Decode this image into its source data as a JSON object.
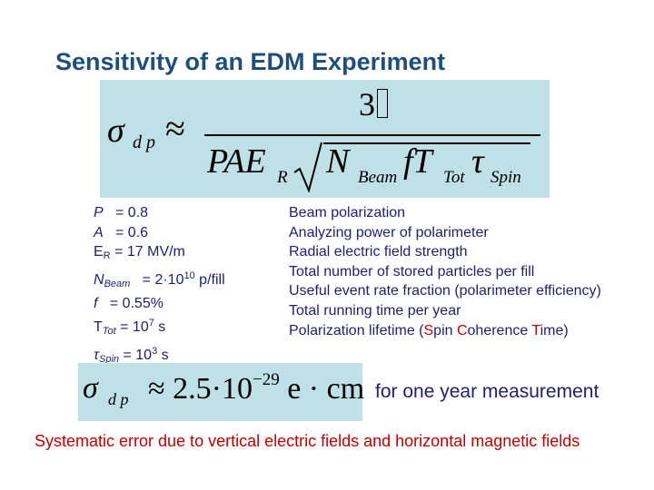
{
  "title": "Sensitivity of an EDM Experiment",
  "formula_main": {
    "lhs": "σ",
    "lhs_sub": "d p",
    "relation": "≈",
    "numerator": "3",
    "denom_pae": "PAE",
    "denom_pae_sub": "R",
    "denom_n": "N",
    "denom_n_sub": "Beam",
    "denom_ft": "fT",
    "denom_ft_sub": "Tot",
    "denom_tau": "τ",
    "denom_tau_sub": "Spin"
  },
  "parameters": [
    {
      "sym": "P",
      "sub": "",
      "value": "= 0.8",
      "sup": "",
      "unit": "",
      "desc": "Beam polarization"
    },
    {
      "sym": "A",
      "sub": "",
      "value": "= 0.6",
      "sup": "",
      "unit": "",
      "desc": "Analyzing power of polarimeter"
    },
    {
      "sym": "E",
      "sub": "R",
      "value": "= 17 MV/m",
      "sup": "",
      "unit": "",
      "desc": "Radial electric field strength"
    },
    {
      "sym": "N",
      "sub": "Beam",
      "value": "= 2·10",
      "sup": "10",
      "unit": "p/fill",
      "desc": "Total number of stored particles per fill"
    },
    {
      "sym": "f",
      "sub": "",
      "value": "= 0.55%",
      "sup": "",
      "unit": "",
      "desc": "Useful event rate fraction (polarimeter efficiency)"
    },
    {
      "sym": "T",
      "sub": "Tot",
      "value": "= 10",
      "sup": "7",
      "unit": "s",
      "desc": "Total running time per year"
    },
    {
      "sym": "τ",
      "sub": "Spin",
      "value": "= 10",
      "sup": "3",
      "unit": "s",
      "desc_prefix": "Polarization lifetime (",
      "desc_s": "S",
      "desc_pin": "pin ",
      "desc_c": "C",
      "desc_oherence": "oherence ",
      "desc_t": "T",
      "desc_ime": "ime)"
    }
  ],
  "formula_result": {
    "lhs": "σ",
    "lhs_sub": "d p",
    "body": "≈ 2.5·10",
    "exponent": "−29",
    "tail": " e · cm"
  },
  "note_year": "for one year measurement",
  "systematic": "Systematic error due to vertical electric fields and horizontal magnetic fields",
  "colors": {
    "title": "#1f4e79",
    "box": "#bfe0e6",
    "text": "#1f1f6e",
    "highlight": "#c00000"
  }
}
